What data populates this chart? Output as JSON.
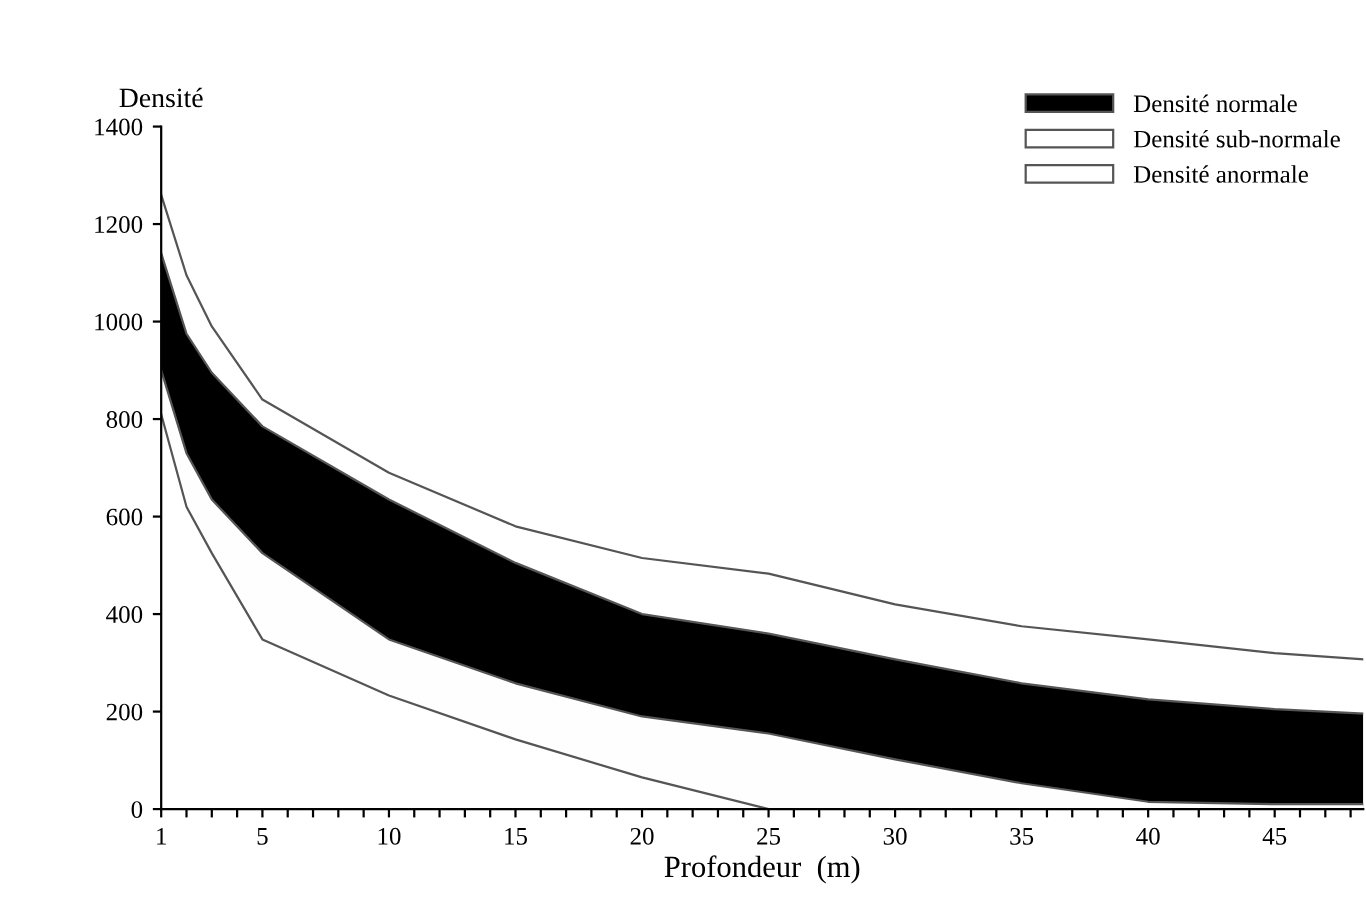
{
  "chart_data": {
    "type": "area",
    "xlabel": "Profondeur  (m)",
    "ylabel": "Densité",
    "x": [
      1,
      2,
      3,
      5,
      10,
      15,
      20,
      25,
      30,
      35,
      40,
      45,
      48.5
    ],
    "series": [
      {
        "name": "Densité normale",
        "color": "#000000",
        "values": [
          1140,
          975,
          895,
          785,
          635,
          505,
          400,
          360,
          307,
          258,
          225,
          205,
          196
        ]
      },
      {
        "color": "#fefefe",
        "values": [
          900,
          730,
          635,
          525,
          348,
          258,
          190,
          155,
          102,
          53,
          15,
          10,
          10
        ]
      },
      {
        "name": "Densité sub-normale",
        "color": "#ffffff",
        "values": [
          810,
          620,
          525,
          348,
          233,
          143,
          65,
          0,
          null,
          null,
          null,
          null,
          null
        ]
      },
      {
        "name": "Densité anormale",
        "color": "#ffffff",
        "values": [
          1260,
          1095,
          990,
          840,
          690,
          580,
          515,
          483,
          420,
          375,
          348,
          320,
          307
        ]
      }
    ],
    "xlim": [
      1,
      48.5
    ],
    "ylim": [
      0,
      1400
    ],
    "xticks": [
      1,
      {
        "value": 2,
        "label": null
      },
      {
        "value": 3,
        "label": null
      },
      {
        "value": 4,
        "label": null
      },
      5,
      {
        "value": 6,
        "label": null
      },
      {
        "value": 7,
        "label": null
      },
      {
        "value": 8,
        "label": null
      },
      {
        "value": 9,
        "label": null
      },
      10,
      {
        "value": 11,
        "label": null
      },
      {
        "value": 12,
        "label": null
      },
      {
        "value": 13,
        "label": null
      },
      {
        "value": 14,
        "label": null
      },
      15,
      {
        "value": 16,
        "label": null
      },
      {
        "value": 17,
        "label": null
      },
      {
        "value": 18,
        "label": null
      },
      {
        "value": 19,
        "label": null
      },
      20,
      {
        "value": 21,
        "label": null
      },
      {
        "value": 22,
        "label": null
      },
      {
        "value": 23,
        "label": null
      },
      {
        "value": 24,
        "label": null
      },
      25,
      {
        "value": 26,
        "label": null
      },
      {
        "value": 27,
        "label": null
      },
      {
        "value": 28,
        "label": null
      },
      {
        "value": 29,
        "label": null
      },
      30,
      {
        "value": 31,
        "label": null
      },
      {
        "value": 32,
        "label": null
      },
      {
        "value": 33,
        "label": null
      },
      {
        "value": 34,
        "label": null
      },
      35,
      {
        "value": 36,
        "label": null
      },
      {
        "value": 37,
        "label": null
      },
      {
        "value": 38,
        "label": null
      },
      {
        "value": 39,
        "label": null
      },
      40,
      {
        "value": 41,
        "label": null
      },
      {
        "value": 42,
        "label": null
      },
      {
        "value": 43,
        "label": null
      },
      {
        "value": 44,
        "label": null
      },
      45,
      {
        "value": 46,
        "label": null
      },
      {
        "value": 47,
        "label": null
      },
      {
        "value": 48,
        "label": null
      }
    ],
    "yticks": [
      0,
      200,
      400,
      600,
      800,
      1000,
      1200,
      1400
    ],
    "grid": false,
    "legend": "top right"
  }
}
